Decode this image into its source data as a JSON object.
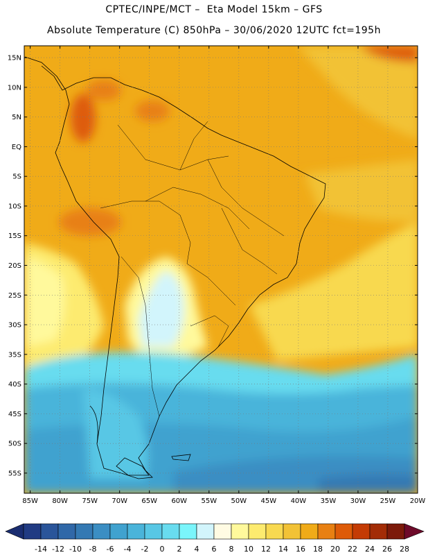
{
  "header": {
    "line1": "CPTEC/INPE/MCT –  Eta Model 15km – GFS",
    "line2": "Absolute Temperature (C) 850hPa – 30/06/2020 12UTC fct=195h"
  },
  "axes": {
    "lat_labels": [
      "15N",
      "10N",
      "5N",
      "EQ",
      "5S",
      "10S",
      "15S",
      "20S",
      "25S",
      "30S",
      "35S",
      "40S",
      "45S",
      "50S",
      "55S"
    ],
    "lat_values": [
      15,
      10,
      5,
      0,
      -5,
      -10,
      -15,
      -20,
      -25,
      -30,
      -35,
      -40,
      -45,
      -50,
      -55
    ],
    "lon_labels": [
      "85W",
      "80W",
      "75W",
      "70W",
      "65W",
      "60W",
      "55W",
      "50W",
      "45W",
      "40W",
      "35W",
      "30W",
      "25W",
      "20W"
    ],
    "lon_values": [
      -85,
      -80,
      -75,
      -70,
      -65,
      -60,
      -55,
      -50,
      -45,
      -40,
      -35,
      -30,
      -25,
      -20
    ],
    "lon_range": [
      -86,
      -20
    ],
    "lat_range": [
      -58.4,
      17
    ]
  },
  "colorbar": {
    "labels": [
      "-14",
      "-12",
      "-10",
      "-8",
      "-6",
      "-4",
      "-2",
      "0",
      "2",
      "4",
      "6",
      "8",
      "10",
      "12",
      "14",
      "16",
      "18",
      "20",
      "22",
      "24",
      "26",
      "28"
    ],
    "colors": [
      "#213b83",
      "#2a559a",
      "#3068a8",
      "#3479b3",
      "#3b8ec3",
      "#40a2cf",
      "#4ab4da",
      "#58c7e5",
      "#68dcef",
      "#7af5fb",
      "#d2f5fc",
      "#fffbe3",
      "#fff99c",
      "#fdeb6f",
      "#f8d950",
      "#f2c236",
      "#f0ab18",
      "#e88012",
      "#de5b08",
      "#c43b04",
      "#a32c06",
      "#7c1a0a"
    ],
    "low_arrow_color": "#1a2d70",
    "high_arrow_color": "#6e0a2a"
  }
}
